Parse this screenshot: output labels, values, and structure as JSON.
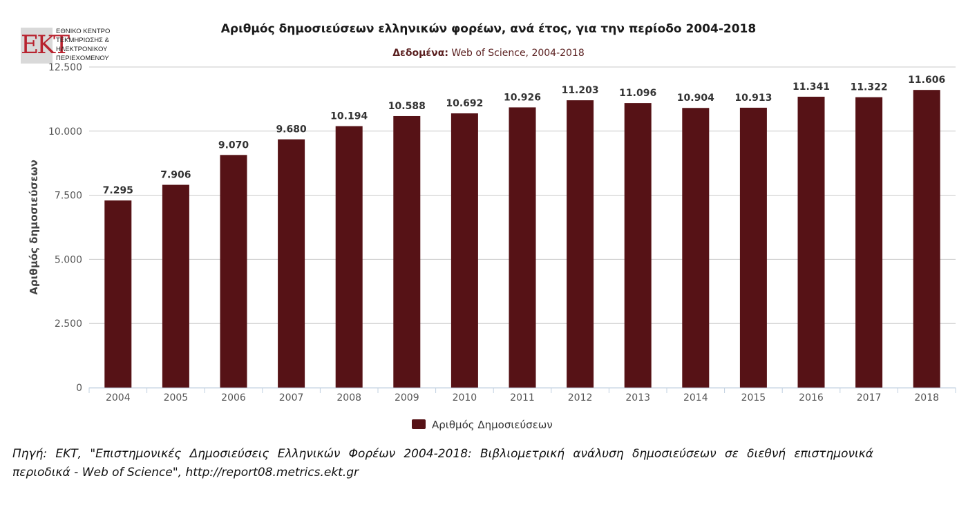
{
  "logo": {
    "mark": "EKT",
    "lines": [
      "ΕΘΝΙΚΟ ΚΕΝΤΡΟ",
      "ΤΕΚΜΗΡΙΩΣΗΣ &",
      "ΗΛΕΚΤΡΟΝΙΚΟΥ",
      "ΠΕΡΙΕΧΟΜΕΝΟΥ"
    ]
  },
  "subtitle": {
    "label": "Δεδομένα:",
    "text": " Web of Science, 2004-2018"
  },
  "source_note": " Πηγή: ΕΚΤ, \"Επιστημονικές Δημοσιεύσεις Ελληνικών Φορέων 2004-2018: Βιβλιομετρική ανάλυση δημοσιεύσεων σε διεθνή επιστημονικά περιοδικά - Web of Science\", http://report08.metrics.ekt.gr",
  "colors": {
    "bar": "#561216",
    "grid": "#c8c8c8",
    "axis": "#c0d0e0"
  },
  "chart_data": {
    "type": "bar",
    "title": "Αριθμός δημοσιεύσεων ελληνικών φορέων, ανά έτος, για την περίοδο 2004-2018",
    "ylabel": "Αριθμός δημοσιεύσεων",
    "xlabel": "",
    "ylim": [
      0,
      12500
    ],
    "yticks": [
      0,
      2500,
      5000,
      7500,
      10000,
      12500
    ],
    "ytick_labels": [
      "0",
      "2.500",
      "5.000",
      "7.500",
      "10.000",
      "12.500"
    ],
    "grid": true,
    "legend_position": "bottom-center",
    "categories": [
      "2004",
      "2005",
      "2006",
      "2007",
      "2008",
      "2009",
      "2010",
      "2011",
      "2012",
      "2013",
      "2014",
      "2015",
      "2016",
      "2017",
      "2018"
    ],
    "series": [
      {
        "name": "Αριθμός Δημοσιεύσεων",
        "values": [
          7295,
          7906,
          9070,
          9680,
          10194,
          10588,
          10692,
          10926,
          11203,
          11096,
          10904,
          10913,
          11341,
          11322,
          11606
        ],
        "data_labels": [
          "7.295",
          "7.906",
          "9.070",
          "9.680",
          "10.194",
          "10.588",
          "10.692",
          "10.926",
          "11.203",
          "11.096",
          "10.904",
          "10.913",
          "11.341",
          "11.322",
          "11.606"
        ]
      }
    ]
  }
}
